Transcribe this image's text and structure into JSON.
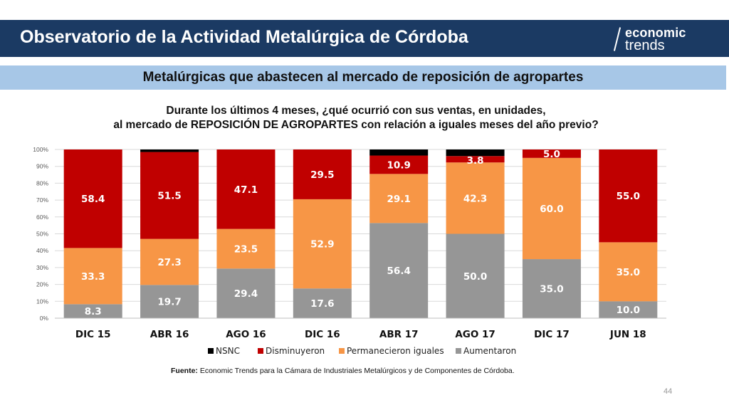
{
  "header": {
    "title": "Observatorio de la Actividad Metalúrgica de Córdoba",
    "logo_line1": "economic",
    "logo_line2": "trends"
  },
  "subtitle": "Metalúrgicas que abastecen al mercado de reposición de agropartes",
  "question": {
    "line1": "Durante los últimos 4 meses, ¿qué ocurrió con sus ventas, en unidades,",
    "line2": "al mercado de REPOSICIÓN DE AGROPARTES con relación a iguales meses del año previo?"
  },
  "chart_data": {
    "type": "bar",
    "stacked": true,
    "categories": [
      "DIC 15",
      "ABR 16",
      "AGO 16",
      "DIC 16",
      "ABR 17",
      "AGO 17",
      "DIC 17",
      "JUN 18"
    ],
    "series": [
      {
        "name": "Aumentaron",
        "color": "#969696",
        "values": [
          8.3,
          19.7,
          29.4,
          17.6,
          56.4,
          50.0,
          35.0,
          10.0
        ],
        "labels": [
          "8.3",
          "19.7",
          "29.4",
          "17.6",
          "56.4",
          "50.0",
          "35.0",
          "10.0"
        ]
      },
      {
        "name": "Permanecieron iguales",
        "color": "#f79646",
        "values": [
          33.3,
          27.3,
          23.5,
          52.9,
          29.1,
          42.3,
          60.0,
          35.0
        ],
        "labels": [
          "33.3",
          "27.3",
          "23.5",
          "52.9",
          "29.1",
          "42.3",
          "60.0",
          "35.0"
        ]
      },
      {
        "name": "Disminuyeron",
        "color": "#c00000",
        "values": [
          58.4,
          51.5,
          47.1,
          29.5,
          10.9,
          3.8,
          5.0,
          55.0
        ],
        "labels": [
          "58.4",
          "51.5",
          "47.1",
          "29.5",
          "10.9",
          "3.8",
          "5.0",
          "55.0"
        ]
      },
      {
        "name": "NSNC",
        "color": "#000000",
        "values": [
          0,
          1.5,
          0,
          0,
          3.6,
          3.9,
          0,
          0
        ],
        "labels": [
          "",
          "",
          "",
          "",
          "",
          "",
          "",
          ""
        ]
      }
    ],
    "legend_order": [
      "NSNC",
      "Disminuyeron",
      "Permanecieron iguales",
      "Aumentaron"
    ],
    "legend_position": "bottom",
    "y_ticks": [
      "0%",
      "10%",
      "20%",
      "30%",
      "40%",
      "50%",
      "60%",
      "70%",
      "80%",
      "90%",
      "100%"
    ],
    "ylim": [
      0,
      100
    ],
    "grid": true
  },
  "source": {
    "label": "Fuente:",
    "text": " Economic Trends para la Cámara de Industriales Metalúrgicos y de Componentes de Córdoba."
  },
  "page_number": "44"
}
